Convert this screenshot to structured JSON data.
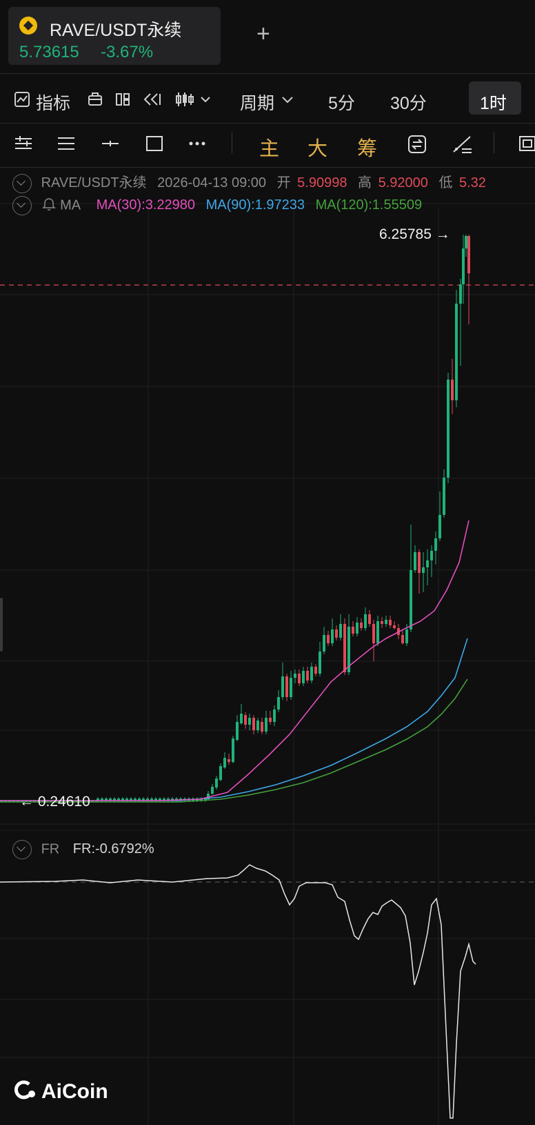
{
  "tab": {
    "title": "RAVE/USDT永续",
    "price": "5.73615",
    "change": "-3.67%",
    "add_symbol": "+",
    "logo_icon": "binance-logo-icon"
  },
  "toolbar": {
    "indicators_label": "指标",
    "period_label": "周期",
    "interval_5m": "5分",
    "interval_30m": "30分",
    "interval_1h": "1时",
    "active_interval": "1时"
  },
  "draw_toolbar": {
    "main_label": "主",
    "large_label": "大",
    "chip_label": "筹"
  },
  "ohlc": {
    "symbol": "RAVE/USDT永续",
    "datetime": "2026-04-13 09:00",
    "open_label": "开",
    "open": "5.90998",
    "high_label": "高",
    "high": "5.92000",
    "low_label": "低",
    "low": "5.32"
  },
  "ma": {
    "label": "MA",
    "ma30": "MA(30):3.22980",
    "ma90": "MA(90):1.97233",
    "ma120": "MA(120):1.55509",
    "colors": {
      "ma30": "#e44fbc",
      "ma90": "#3fa7e6",
      "ma120": "#44a23a"
    }
  },
  "price_markers": {
    "high": "6.25785 →",
    "low": "← 0.24610"
  },
  "fr": {
    "label": "FR",
    "value": "FR:-0.6792%"
  },
  "branding": {
    "name": "AiCoin"
  },
  "colors": {
    "up": "#1fb37a",
    "down": "#e04a57",
    "background": "#0f0f10"
  }
}
